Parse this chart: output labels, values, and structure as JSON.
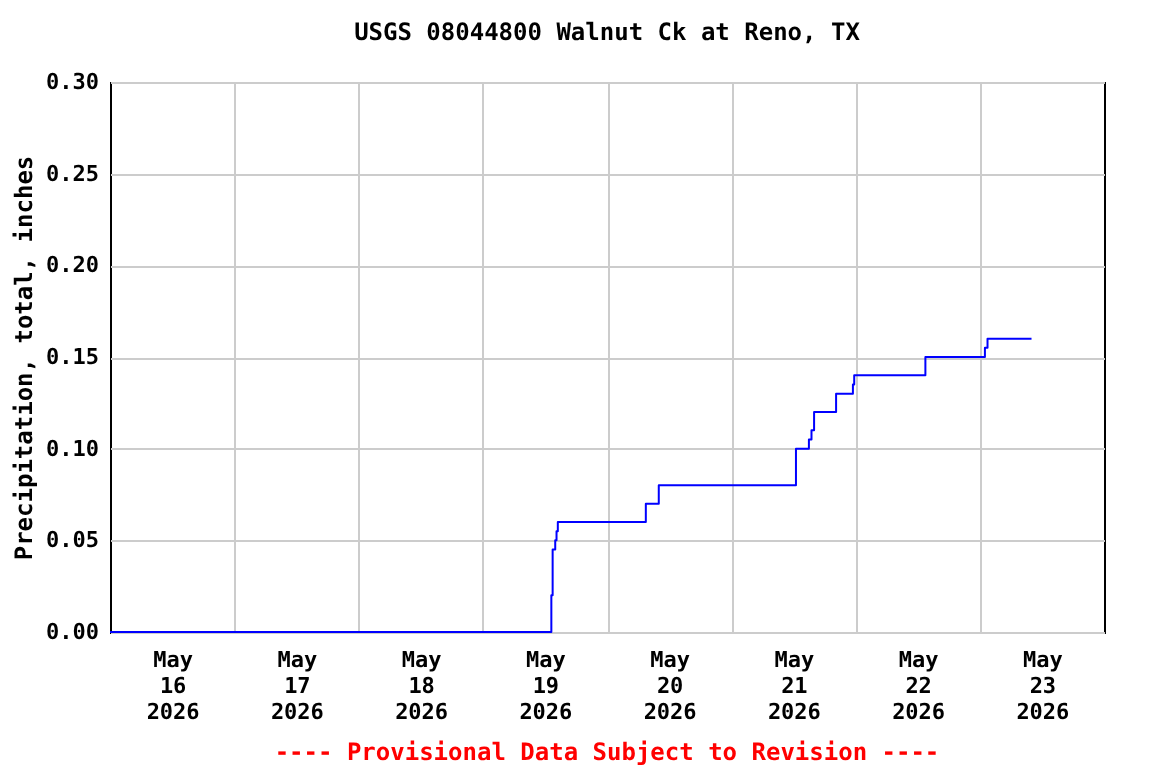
{
  "chart_data": {
    "type": "step",
    "title": "USGS 08044800 Walnut Ck at Reno, TX",
    "ylabel": "Precipitation, total, inches",
    "annotations": [
      "---- Provisional Data Subject to Revision ----"
    ],
    "x": [
      "2026-05-16T00:00",
      "2026-05-19T13:15",
      "2026-05-19T13:30",
      "2026-05-19T14:00",
      "2026-05-19T14:15",
      "2026-05-19T14:30",
      "2026-05-20T07:30",
      "2026-05-20T10:00",
      "2026-05-21T12:30",
      "2026-05-21T15:00",
      "2026-05-21T15:30",
      "2026-05-21T16:00",
      "2026-05-21T20:15",
      "2026-05-21T23:30",
      "2026-05-21T23:45",
      "2026-05-22T13:30",
      "2026-05-23T01:00",
      "2026-05-23T01:30",
      "2026-05-23T10:00"
    ],
    "series": [
      {
        "color": "#0000ff",
        "values": [
          0,
          0.02,
          0.045,
          0.05,
          0.055,
          0.06,
          0.07,
          0.08,
          0.1,
          0.105,
          0.11,
          0.12,
          0.13,
          0.135,
          0.14,
          0.15,
          0.155,
          0.16,
          0.16
        ]
      }
    ],
    "xlim": [
      "2026-05-16T00:00",
      "2026-05-24T00:00"
    ],
    "xticks": [
      {
        "value": "2026-05-16T12:00",
        "label": "May\n16\n2026"
      },
      {
        "value": "2026-05-17T12:00",
        "label": "May\n17\n2026"
      },
      {
        "value": "2026-05-18T12:00",
        "label": "May\n18\n2026"
      },
      {
        "value": "2026-05-19T12:00",
        "label": "May\n19\n2026"
      },
      {
        "value": "2026-05-20T12:00",
        "label": "May\n20\n2026"
      },
      {
        "value": "2026-05-21T12:00",
        "label": "May\n21\n2026"
      },
      {
        "value": "2026-05-22T12:00",
        "label": "May\n22\n2026"
      },
      {
        "value": "2026-05-23T12:00",
        "label": "May\n23\n2026"
      },
      {
        "value": "2026-05-17T00:00",
        "label": null
      },
      {
        "value": "2026-05-18T00:00",
        "label": null
      },
      {
        "value": "2026-05-19T00:00",
        "label": null
      },
      {
        "value": "2026-05-20T00:00",
        "label": null
      },
      {
        "value": "2026-05-21T00:00",
        "label": null
      },
      {
        "value": "2026-05-22T00:00",
        "label": null
      },
      {
        "value": "2026-05-23T00:00",
        "label": null
      }
    ],
    "ylim": [
      0,
      0.3
    ],
    "yticks": [
      {
        "value": 0,
        "label": "0.00"
      },
      {
        "value": 0.05,
        "label": "0.05"
      },
      {
        "value": 0.1,
        "label": "0.10"
      },
      {
        "value": 0.15,
        "label": "0.15"
      },
      {
        "value": 0.2,
        "label": "0.20"
      },
      {
        "value": 0.25,
        "label": "0.25"
      },
      {
        "value": 0.3,
        "label": "0.30"
      }
    ],
    "grid": true
  }
}
